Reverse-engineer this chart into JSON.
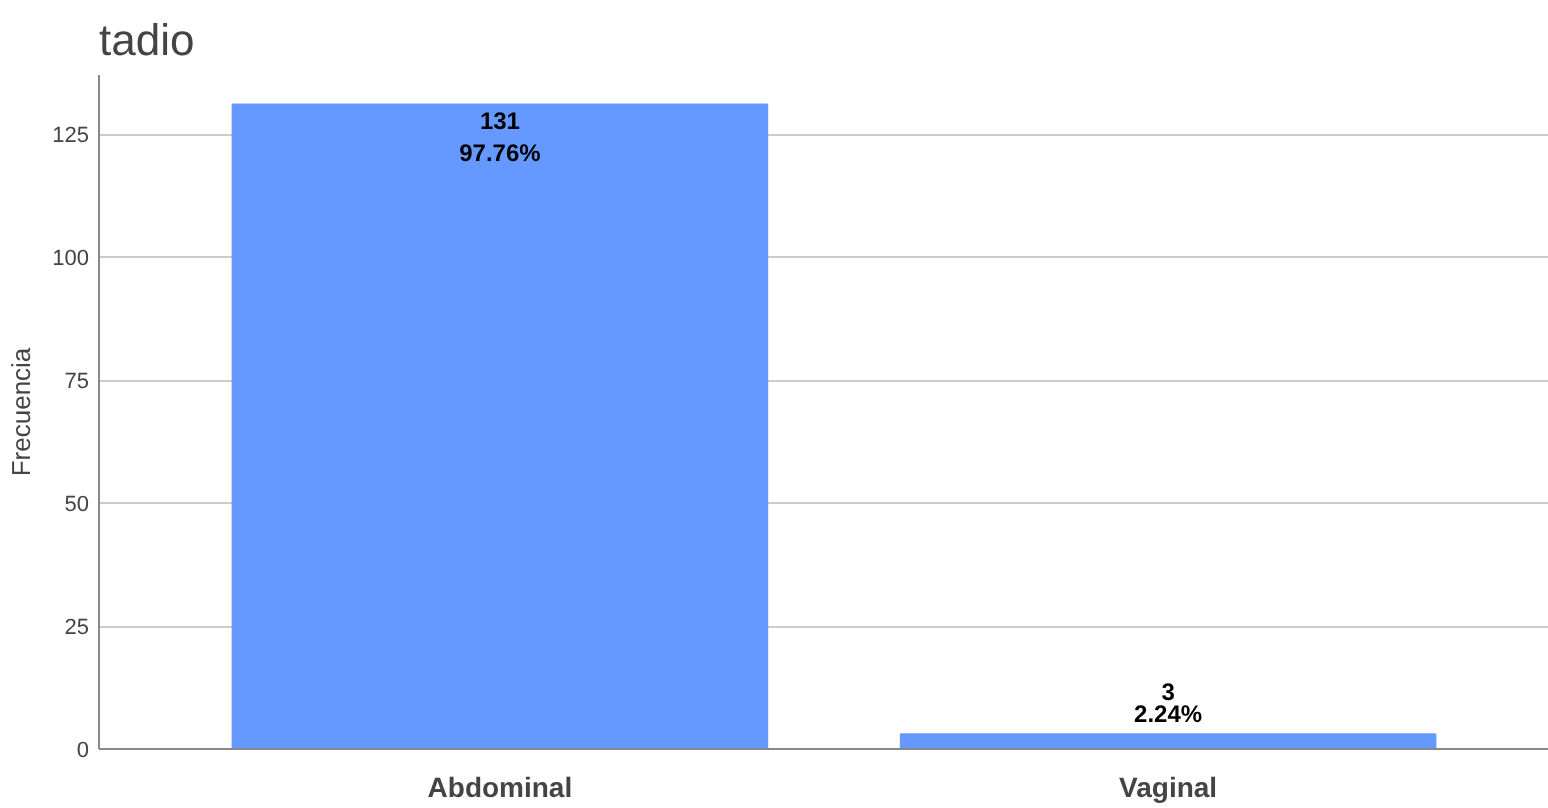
{
  "chart_data": {
    "type": "bar",
    "title": "tadio",
    "ylabel": "Frecuencia",
    "categories": [
      "Abdominal",
      "Vaginal"
    ],
    "values": [
      131,
      3
    ],
    "value_labels": [
      "131\n97.76%",
      "3\n2.24%"
    ],
    "color": "#6699ff",
    "ylim": [
      0,
      137
    ],
    "yticks": [
      0,
      25,
      50,
      75,
      100,
      125
    ],
    "grid": "y"
  }
}
